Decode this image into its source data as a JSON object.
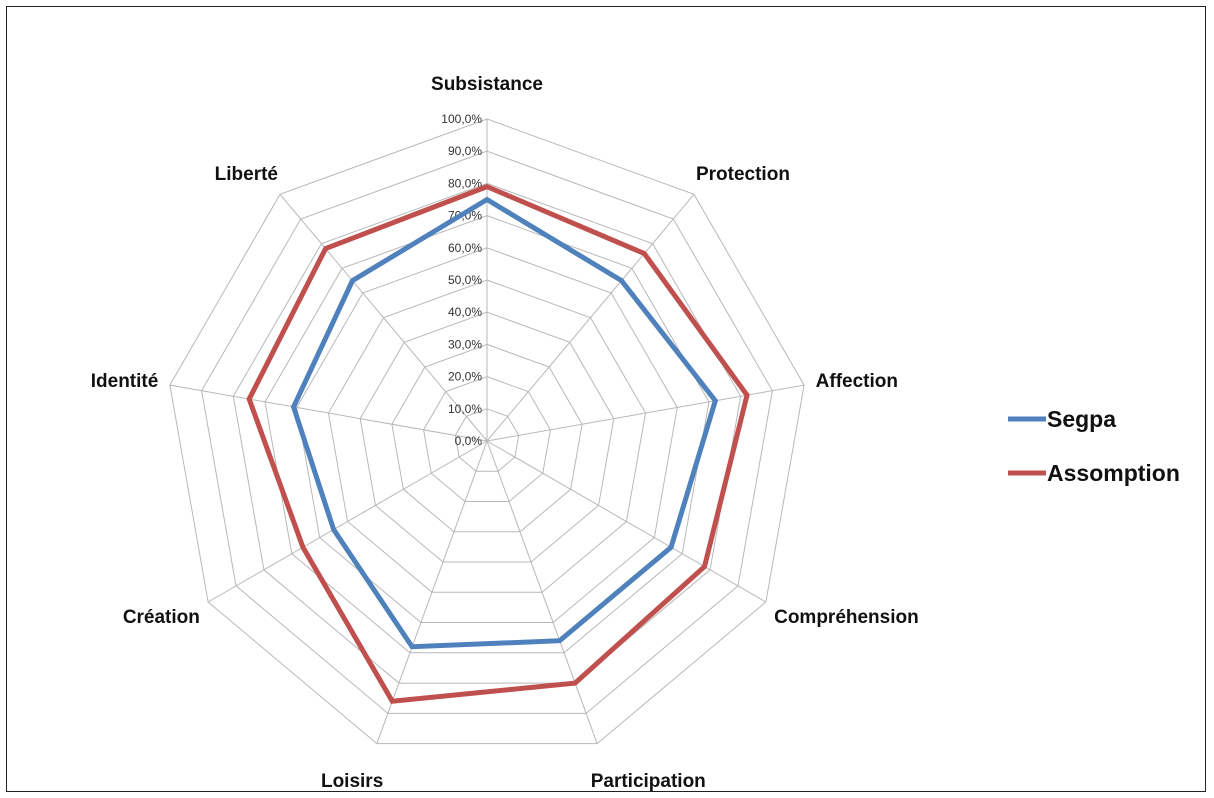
{
  "chart_data": {
    "type": "radar",
    "title": "",
    "categories": [
      "Subsistance",
      "Protection",
      "Affection",
      "Compréhension",
      "Participation",
      "Loisirs",
      "Création",
      "Identité",
      "Liberté"
    ],
    "rlim": [
      0,
      100
    ],
    "tick_labels": [
      "0,0%",
      "10,0%",
      "20,0%",
      "30,0%",
      "40,0%",
      "50,0%",
      "60,0%",
      "70,0%",
      "80,0%",
      "90,0%",
      "100,0%"
    ],
    "grid": true,
    "legend_position": "right",
    "series": [
      {
        "name": "Segpa",
        "color": "#4f81bd",
        "values": [
          75,
          65,
          72,
          66,
          66,
          68,
          55,
          61,
          65
        ]
      },
      {
        "name": "Assomption",
        "color": "#c0504d",
        "values": [
          79,
          76,
          82,
          78,
          80,
          86,
          66,
          75,
          78
        ]
      }
    ]
  }
}
